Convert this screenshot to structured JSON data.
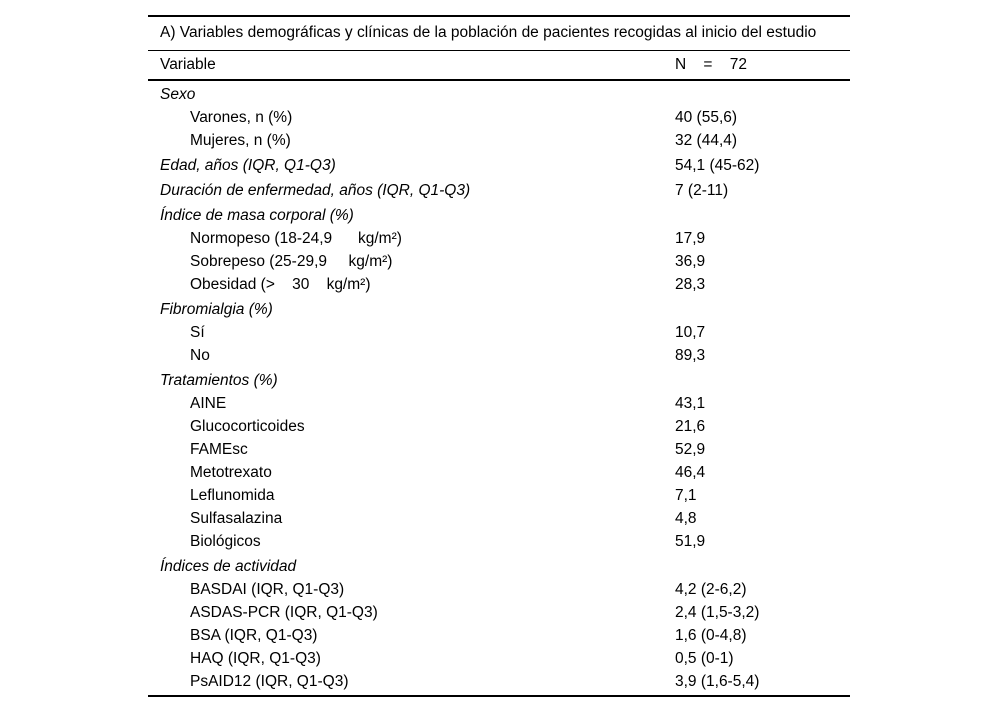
{
  "table": {
    "title": "A) Variables demográficas y clínicas de la población de pacientes recogidas al inicio del estudio",
    "header": {
      "variable": "Variable",
      "n": "N    =    72"
    },
    "rows": [
      {
        "label": "Sexo",
        "value": "",
        "style": "section"
      },
      {
        "label": "Varones, n (%)",
        "value": "40 (55,6)",
        "style": "sub"
      },
      {
        "label": "Mujeres, n (%)",
        "value": "32 (44,4)",
        "style": "sub"
      },
      {
        "label": "Edad, años (IQR, Q1-Q3)",
        "value": "54,1 (45-62)",
        "style": "section"
      },
      {
        "label": "Duración de enfermedad, años (IQR, Q1-Q3)",
        "value": "7 (2-11)",
        "style": "section"
      },
      {
        "label": "Índice de masa corporal (%)",
        "value": "",
        "style": "section"
      },
      {
        "label": "Normopeso (18-24,9      kg/m²)",
        "value": "17,9",
        "style": "sub"
      },
      {
        "label": "Sobrepeso (25-29,9     kg/m²)",
        "value": "36,9",
        "style": "sub"
      },
      {
        "label": "Obesidad (>    30    kg/m²)",
        "value": "28,3",
        "style": "sub"
      },
      {
        "label": "Fibromialgia (%)",
        "value": "",
        "style": "section"
      },
      {
        "label": "Sí",
        "value": "10,7",
        "style": "sub"
      },
      {
        "label": "No",
        "value": "89,3",
        "style": "sub"
      },
      {
        "label": "Tratamientos (%)",
        "value": "",
        "style": "section"
      },
      {
        "label": "AINE",
        "value": "43,1",
        "style": "sub"
      },
      {
        "label": "Glucocorticoides",
        "value": "21,6",
        "style": "sub"
      },
      {
        "label": "FAMEsc",
        "value": "52,9",
        "style": "sub"
      },
      {
        "label": "Metotrexato",
        "value": "46,4",
        "style": "sub"
      },
      {
        "label": "Leflunomida",
        "value": "7,1",
        "style": "sub"
      },
      {
        "label": "Sulfasalazina",
        "value": "4,8",
        "style": "sub"
      },
      {
        "label": "Biológicos",
        "value": "51,9",
        "style": "sub"
      },
      {
        "label": "Índices de actividad",
        "value": "",
        "style": "section"
      },
      {
        "label": "BASDAI (IQR, Q1-Q3)",
        "value": "4,2 (2-6,2)",
        "style": "sub"
      },
      {
        "label": "ASDAS-PCR (IQR, Q1-Q3)",
        "value": "2,4 (1,5-3,2)",
        "style": "sub"
      },
      {
        "label": "BSA (IQR, Q1-Q3)",
        "value": "1,6 (0-4,8)",
        "style": "sub"
      },
      {
        "label": "HAQ (IQR, Q1-Q3)",
        "value": "0,5 (0-1)",
        "style": "sub"
      },
      {
        "label": "PsAID12 (IQR, Q1-Q3)",
        "value": "3,9 (1,6-5,4)",
        "style": "sub"
      }
    ]
  }
}
